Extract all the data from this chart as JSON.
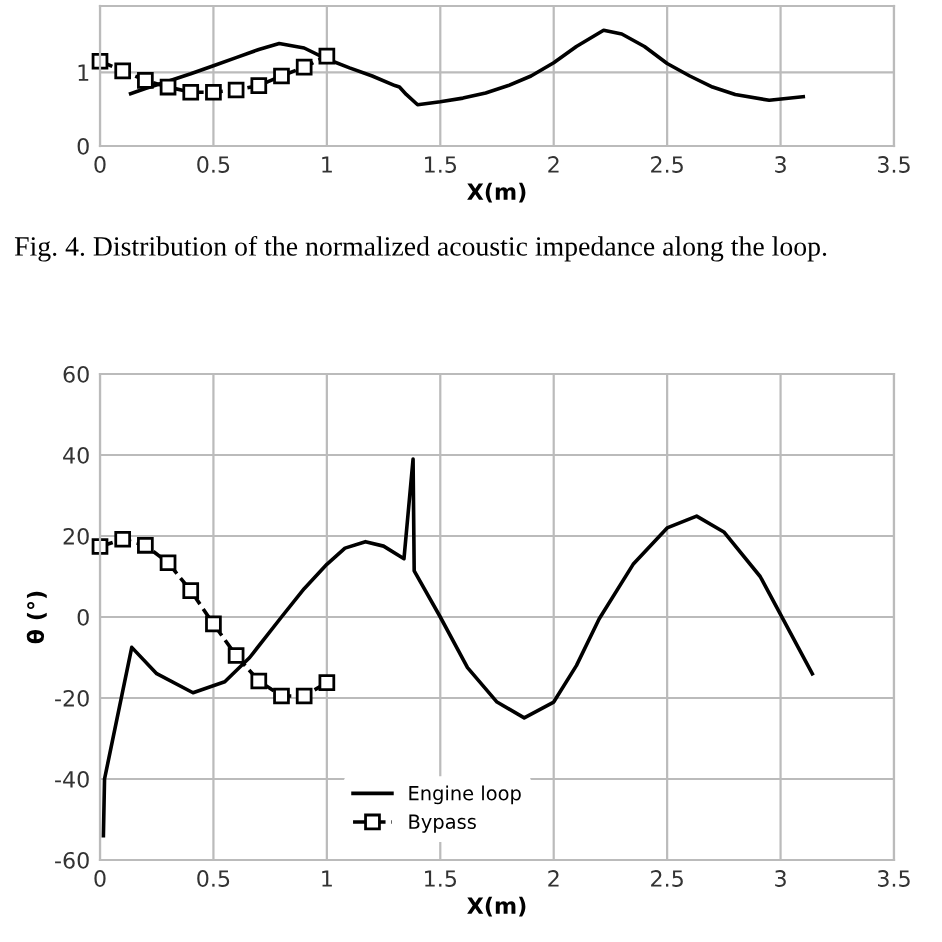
{
  "chart_data": [
    {
      "type": "line",
      "xlabel": "X(m)",
      "xlim": [
        0,
        3.5
      ],
      "xticks": [
        0,
        0.5,
        1,
        1.5,
        2,
        2.5,
        3,
        3.5
      ],
      "ylim": [
        0,
        1.9
      ],
      "yticks": [
        0,
        1
      ],
      "grid": true,
      "legend": false,
      "annotations": [
        "Fig. 4. Distribution of the normalized acoustic impedance along the loop."
      ],
      "series": [
        {
          "color": "#000000",
          "marker": "none",
          "line_style": "solid",
          "x": [
            0.135,
            0.2,
            0.3,
            0.4,
            0.5,
            0.6,
            0.7,
            0.79,
            0.9,
            1.0,
            1.1,
            1.2,
            1.3,
            1.32,
            1.35,
            1.4,
            1.5,
            1.6,
            1.7,
            1.8,
            1.9,
            2.0,
            2.1,
            2.22,
            2.3,
            2.4,
            2.5,
            2.6,
            2.7,
            2.8,
            2.95,
            3.1
          ],
          "values": [
            0.71,
            0.78,
            0.88,
            0.98,
            1.09,
            1.2,
            1.31,
            1.39,
            1.33,
            1.18,
            1.06,
            0.95,
            0.82,
            0.8,
            0.7,
            0.56,
            0.6,
            0.65,
            0.72,
            0.82,
            0.95,
            1.13,
            1.35,
            1.57,
            1.52,
            1.35,
            1.12,
            0.95,
            0.8,
            0.7,
            0.62,
            0.67
          ]
        },
        {
          "color": "#000000",
          "marker": "square",
          "line_style": "dashed",
          "x": [
            0,
            0.1,
            0.2,
            0.3,
            0.4,
            0.5,
            0.6,
            0.7,
            0.8,
            0.9,
            1.0
          ],
          "values": [
            1.15,
            1.02,
            0.89,
            0.8,
            0.73,
            0.73,
            0.76,
            0.82,
            0.95,
            1.07,
            1.22
          ]
        }
      ]
    },
    {
      "type": "line",
      "ylabel": "θ (°)",
      "xlabel": "X(m)",
      "xlim": [
        0,
        3.5
      ],
      "xticks": [
        0,
        0.5,
        1,
        1.5,
        2,
        2.5,
        3,
        3.5
      ],
      "ylim": [
        -60,
        60
      ],
      "yticks": [
        -60,
        -40,
        -20,
        0,
        20,
        40,
        60
      ],
      "grid": true,
      "legend": "bottom",
      "series": [
        {
          "name": "Engine loop",
          "color": "#000000",
          "marker": "none",
          "line_style": "solid",
          "x": [
            0.015,
            0.02,
            0.14,
            0.25,
            0.41,
            0.55,
            0.66,
            0.8,
            0.9,
            1.0,
            1.08,
            1.17,
            1.25,
            1.34,
            1.38,
            1.385,
            1.5,
            1.62,
            1.75,
            1.87,
            2.0,
            2.1,
            2.2,
            2.35,
            2.5,
            2.63,
            2.75,
            2.91,
            3.14
          ],
          "values": [
            -54,
            -40,
            -7.5,
            -14,
            -18.7,
            -16,
            -10,
            0,
            7,
            13,
            17,
            18.6,
            17.5,
            14.4,
            39,
            11.4,
            0,
            -12.5,
            -21,
            -24.9,
            -21,
            -12,
            -0.5,
            13,
            22,
            24.9,
            21,
            10,
            -14
          ]
        },
        {
          "name": "Bypass",
          "color": "#000000",
          "marker": "square",
          "line_style": "dashed",
          "x": [
            0,
            0.1,
            0.2,
            0.3,
            0.4,
            0.5,
            0.6,
            0.7,
            0.8,
            0.9,
            1.0
          ],
          "values": [
            17.4,
            19.2,
            17.7,
            13.4,
            6.5,
            -1.7,
            -9.5,
            -15.8,
            -19.5,
            -19.5,
            -16.2
          ]
        }
      ]
    }
  ]
}
